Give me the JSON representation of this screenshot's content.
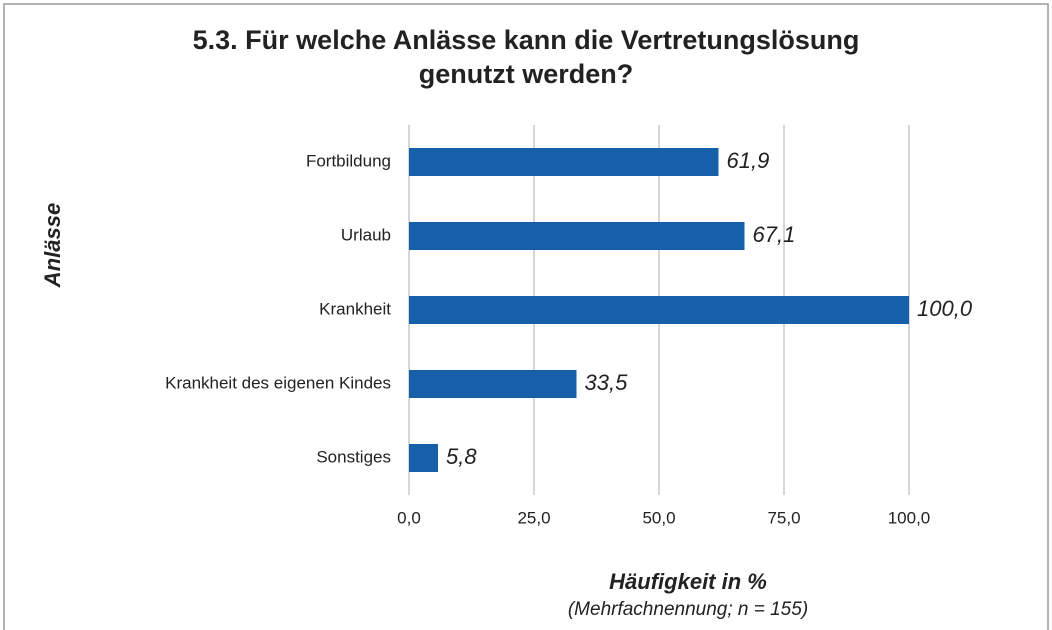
{
  "chart_data": {
    "type": "hbar",
    "title": [
      "5.3. Für welche Anlässe kann die Vertretungslösung",
      "genutzt werden?"
    ],
    "ylabel": "Anlässe",
    "xlabel": "Häufigkeit in %",
    "note": "(Mehrfachnennung; n = 155)",
    "categories": [
      "Fortbildung",
      "Urlaub",
      "Krankheit",
      "Krankheit des eigenen Kindes",
      "Sonstiges"
    ],
    "values": [
      61.9,
      67.1,
      100.0,
      33.5,
      5.8
    ],
    "value_labels": [
      "61,9",
      "67,1",
      "100,0",
      "33,5",
      "5,8"
    ],
    "color": "#1560a8",
    "xlim": [
      0,
      100
    ],
    "xticks": [
      {
        "value": 0,
        "label": "0,0"
      },
      {
        "value": 25,
        "label": "25,0"
      },
      {
        "value": 50,
        "label": "50,0"
      },
      {
        "value": 75,
        "label": "75,0"
      },
      {
        "value": 100,
        "label": "100,0"
      }
    ],
    "grid": true
  }
}
